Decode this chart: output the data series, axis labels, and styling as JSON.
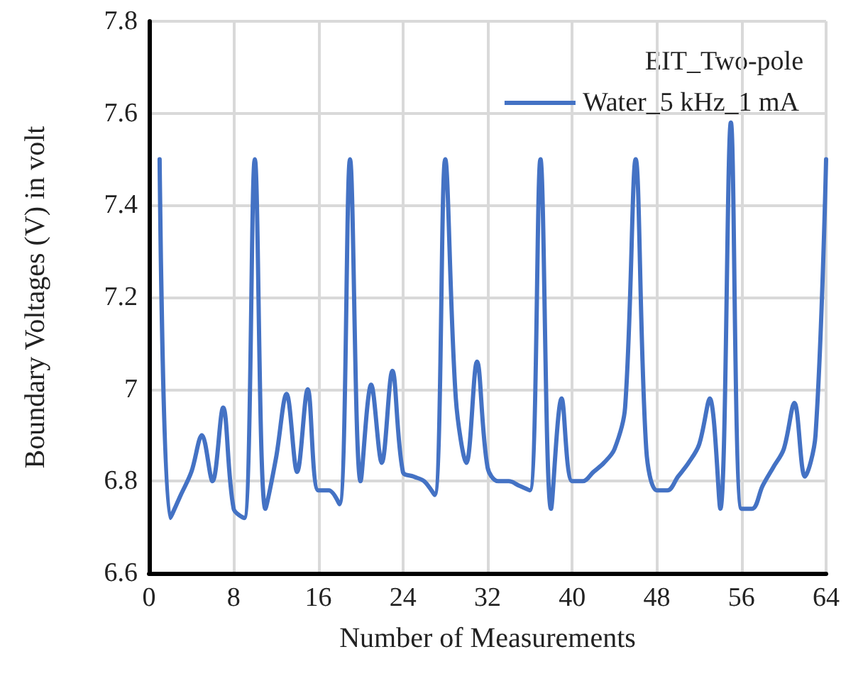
{
  "chart_data": {
    "type": "line",
    "xlabel": "Number of Measurements",
    "ylabel": "Boundary Voltages (V) in volt",
    "legend_title": "EIT_Two-pole",
    "x": [
      1,
      2,
      3,
      4,
      5,
      6,
      7,
      8,
      9,
      10,
      11,
      12,
      13,
      14,
      15,
      16,
      17,
      18,
      19,
      20,
      21,
      22,
      23,
      24,
      25,
      26,
      27,
      28,
      29,
      30,
      31,
      32,
      33,
      34,
      35,
      36,
      37,
      38,
      39,
      40,
      41,
      42,
      43,
      44,
      45,
      46,
      47,
      48,
      49,
      50,
      51,
      52,
      53,
      54,
      55,
      56,
      57,
      58,
      59,
      60,
      61,
      62,
      63,
      64
    ],
    "series": [
      {
        "name": "Water_5 kHz_1 mA",
        "color": "#4472c4",
        "values": [
          7.5,
          6.72,
          6.77,
          6.82,
          6.9,
          6.8,
          6.96,
          6.74,
          6.72,
          7.5,
          6.74,
          6.85,
          6.99,
          6.82,
          7.0,
          6.78,
          6.78,
          6.75,
          7.5,
          6.8,
          7.01,
          6.84,
          7.04,
          6.82,
          6.81,
          6.8,
          6.77,
          7.5,
          6.98,
          6.84,
          7.06,
          6.83,
          6.8,
          6.8,
          6.79,
          6.78,
          7.5,
          6.74,
          6.98,
          6.8,
          6.8,
          6.82,
          6.84,
          6.87,
          6.96,
          7.5,
          6.87,
          6.78,
          6.78,
          6.81,
          6.84,
          6.88,
          6.98,
          6.74,
          7.58,
          6.74,
          6.74,
          6.79,
          6.83,
          6.87,
          6.97,
          6.81,
          6.9,
          7.5
        ]
      }
    ],
    "xlim": [
      0,
      64
    ],
    "xticks": [
      0,
      8,
      16,
      24,
      32,
      40,
      48,
      56,
      64
    ],
    "ylim": [
      6.6,
      7.8
    ],
    "yticks": [
      6.6,
      6.8,
      7,
      7.2,
      7.4,
      7.6,
      7.8
    ],
    "grid": true,
    "legend": "top right",
    "marker": "none",
    "line_style": "solid"
  }
}
